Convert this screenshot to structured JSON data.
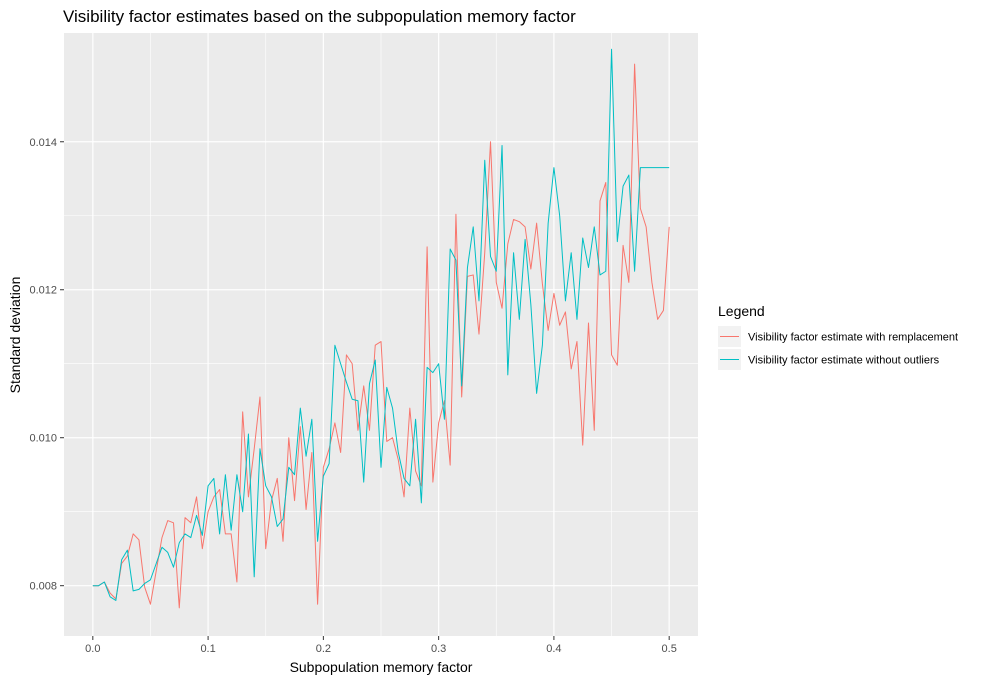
{
  "chart_data": {
    "type": "line",
    "title": "Visibility factor estimates based on the subpopulation memory factor",
    "xlabel": "Subpopulation memory factor",
    "ylabel": "Standard deviation",
    "xlim": [
      -0.025,
      0.525
    ],
    "ylim": [
      0.00732,
      0.01547
    ],
    "x_ticks": [
      0.0,
      0.1,
      0.2,
      0.3,
      0.4,
      0.5
    ],
    "x_tick_labels": [
      "0.0",
      "0.1",
      "0.2",
      "0.3",
      "0.4",
      "0.5"
    ],
    "y_ticks": [
      0.008,
      0.01,
      0.012,
      0.014
    ],
    "y_tick_labels": [
      "0.008",
      "0.010",
      "0.012",
      "0.014"
    ],
    "grid": true,
    "legend_position": "right",
    "legend_title": "Legend",
    "background": "#ebebeb",
    "x": [
      0.0,
      0.005,
      0.01,
      0.015,
      0.02,
      0.025,
      0.03,
      0.035,
      0.04,
      0.045,
      0.05,
      0.055,
      0.06,
      0.065,
      0.07,
      0.075,
      0.08,
      0.085,
      0.09,
      0.095,
      0.1,
      0.105,
      0.11,
      0.115,
      0.12,
      0.125,
      0.13,
      0.135,
      0.14,
      0.145,
      0.15,
      0.155,
      0.16,
      0.165,
      0.17,
      0.175,
      0.18,
      0.185,
      0.19,
      0.195,
      0.2,
      0.205,
      0.21,
      0.215,
      0.22,
      0.225,
      0.23,
      0.235,
      0.24,
      0.245,
      0.25,
      0.255,
      0.26,
      0.265,
      0.27,
      0.275,
      0.28,
      0.285,
      0.29,
      0.295,
      0.3,
      0.305,
      0.31,
      0.315,
      0.32,
      0.325,
      0.33,
      0.335,
      0.34,
      0.345,
      0.35,
      0.355,
      0.36,
      0.365,
      0.37,
      0.375,
      0.38,
      0.385,
      0.39,
      0.395,
      0.4,
      0.405,
      0.41,
      0.415,
      0.42,
      0.425,
      0.43,
      0.435,
      0.44,
      0.445,
      0.45,
      0.455,
      0.46,
      0.465,
      0.47,
      0.475,
      0.48,
      0.485,
      0.49,
      0.495,
      0.5
    ],
    "series": [
      {
        "name": "Visibility factor estimate with remplacement",
        "color": "#F8766D",
        "values": [
          0.008,
          0.008,
          0.00805,
          0.0079,
          0.00782,
          0.0083,
          0.0084,
          0.0087,
          0.00862,
          0.00798,
          0.00775,
          0.0082,
          0.00865,
          0.00888,
          0.00885,
          0.0077,
          0.00892,
          0.00885,
          0.0092,
          0.0085,
          0.009,
          0.0092,
          0.0093,
          0.0087,
          0.0087,
          0.00805,
          0.01035,
          0.0092,
          0.00985,
          0.01055,
          0.0085,
          0.00915,
          0.00945,
          0.0086,
          0.01,
          0.00915,
          0.01015,
          0.00903,
          0.0098,
          0.00775,
          0.0096,
          0.00985,
          0.0102,
          0.0098,
          0.01112,
          0.011,
          0.0101,
          0.0107,
          0.0101,
          0.01125,
          0.0113,
          0.00995,
          0.01,
          0.0097,
          0.0092,
          0.0104,
          0.00955,
          0.00935,
          0.01258,
          0.0094,
          0.0102,
          0.0105,
          0.00963,
          0.01302,
          0.01055,
          0.01218,
          0.0122,
          0.0114,
          0.0125,
          0.014,
          0.0121,
          0.01175,
          0.01262,
          0.01295,
          0.01292,
          0.01285,
          0.01228,
          0.0129,
          0.01208,
          0.01145,
          0.01195,
          0.01152,
          0.0117,
          0.01093,
          0.0113,
          0.0099,
          0.01155,
          0.0101,
          0.0132,
          0.01345,
          0.01112,
          0.01098,
          0.0126,
          0.0121,
          0.01505,
          0.0131,
          0.01285,
          0.0121,
          0.0116,
          0.01172,
          0.01285
        ]
      },
      {
        "name": "Visibility factor estimate without outliers",
        "color": "#00BFC4",
        "values": [
          0.008,
          0.008,
          0.00805,
          0.00785,
          0.0078,
          0.00835,
          0.00848,
          0.00793,
          0.00795,
          0.00803,
          0.00808,
          0.0083,
          0.00852,
          0.00845,
          0.00825,
          0.00858,
          0.0087,
          0.00865,
          0.00895,
          0.00868,
          0.00935,
          0.00945,
          0.0087,
          0.0095,
          0.00875,
          0.0095,
          0.009,
          0.01005,
          0.00812,
          0.00985,
          0.00935,
          0.0092,
          0.0088,
          0.0089,
          0.0096,
          0.0095,
          0.0104,
          0.00975,
          0.01025,
          0.0086,
          0.00948,
          0.00965,
          0.01125,
          0.011,
          0.01075,
          0.01052,
          0.0105,
          0.0094,
          0.01073,
          0.01105,
          0.0096,
          0.01068,
          0.0104,
          0.0098,
          0.00945,
          0.00935,
          0.01025,
          0.00912,
          0.01095,
          0.01088,
          0.011,
          0.01025,
          0.01255,
          0.0124,
          0.0107,
          0.0123,
          0.01285,
          0.01185,
          0.01375,
          0.01245,
          0.01225,
          0.01395,
          0.01085,
          0.0125,
          0.0116,
          0.01268,
          0.0118,
          0.0106,
          0.01125,
          0.0129,
          0.01365,
          0.013,
          0.01185,
          0.0125,
          0.0116,
          0.0127,
          0.0123,
          0.01285,
          0.0122,
          0.01225,
          0.01525,
          0.01265,
          0.0134,
          0.01355,
          0.01225,
          0.01365,
          0.01365,
          0.01365,
          0.01365,
          0.01365,
          0.01365
        ]
      }
    ]
  }
}
